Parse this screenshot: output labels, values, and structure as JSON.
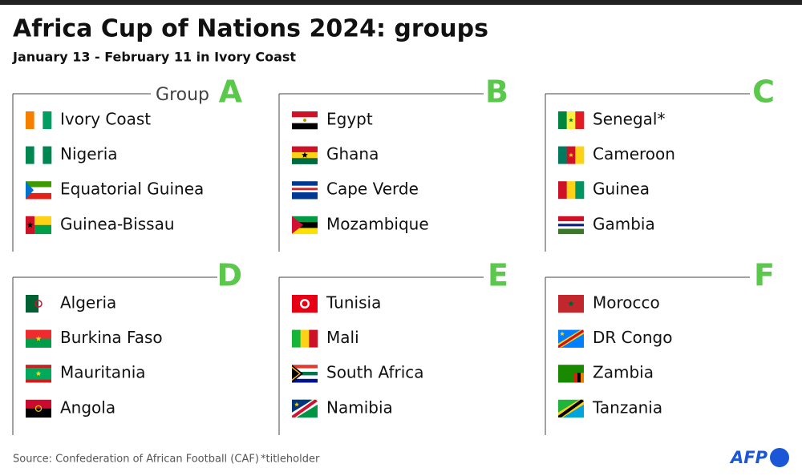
{
  "header": {
    "title": "Africa Cup of Nations 2024: groups",
    "subtitle": "January 13 - February 11 in Ivory Coast"
  },
  "group_label": "Group",
  "groups": [
    {
      "letter": "A",
      "teams": [
        "Ivory Coast",
        "Nigeria",
        "Equatorial Guinea",
        "Guinea-Bissau"
      ]
    },
    {
      "letter": "B",
      "teams": [
        "Egypt",
        "Ghana",
        "Cape Verde",
        "Mozambique"
      ]
    },
    {
      "letter": "C",
      "teams": [
        "Senegal*",
        "Cameroon",
        "Guinea",
        "Gambia"
      ]
    },
    {
      "letter": "D",
      "teams": [
        "Algeria",
        "Burkina Faso",
        "Mauritania",
        "Angola"
      ]
    },
    {
      "letter": "E",
      "teams": [
        "Tunisia",
        "Mali",
        "South Africa",
        "Namibia"
      ]
    },
    {
      "letter": "F",
      "teams": [
        "Morocco",
        "DR Congo",
        "Zambia",
        "Tanzania"
      ]
    }
  ],
  "footer": {
    "source": "Source: Confederation of African Football (CAF)",
    "note": "*titleholder",
    "logo": "AFP"
  }
}
